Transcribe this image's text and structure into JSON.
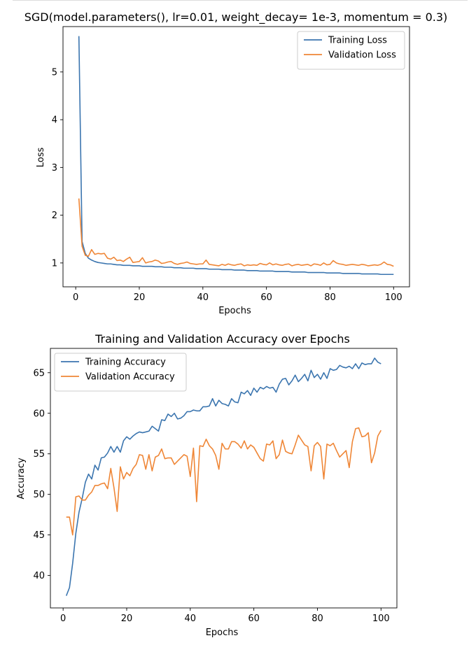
{
  "chart_data": [
    {
      "type": "line",
      "title": "SGD(model.parameters(), lr=0.01, weight_decay= 1e-3, momentum = 0.3)",
      "xlabel": "Epochs",
      "ylabel": "Loss",
      "xlim": [
        -4,
        105
      ],
      "ylim": [
        0.5,
        5.95
      ],
      "xticks": [
        0,
        20,
        40,
        60,
        80,
        100
      ],
      "yticks": [
        1,
        2,
        3,
        4,
        5
      ],
      "grid": false,
      "legend": "upper right",
      "series": [
        {
          "name": "Training Loss",
          "color": "#3b75af",
          "x": [
            1,
            2,
            3,
            4,
            5,
            6,
            7,
            8,
            9,
            10,
            11,
            12,
            13,
            14,
            15,
            16,
            17,
            18,
            19,
            20,
            21,
            22,
            23,
            24,
            25,
            26,
            27,
            28,
            29,
            30,
            31,
            32,
            33,
            34,
            35,
            36,
            37,
            38,
            39,
            40,
            41,
            42,
            43,
            44,
            45,
            46,
            47,
            48,
            49,
            50,
            51,
            52,
            53,
            54,
            55,
            56,
            57,
            58,
            59,
            60,
            61,
            62,
            63,
            64,
            65,
            66,
            67,
            68,
            69,
            70,
            71,
            72,
            73,
            74,
            75,
            76,
            77,
            78,
            79,
            80,
            81,
            82,
            83,
            84,
            85,
            86,
            87,
            88,
            89,
            90,
            91,
            92,
            93,
            94,
            95,
            96,
            97,
            98,
            99,
            100
          ],
          "y": [
            5.75,
            1.45,
            1.2,
            1.1,
            1.06,
            1.03,
            1.01,
            1.0,
            0.99,
            0.98,
            0.98,
            0.97,
            0.96,
            0.96,
            0.95,
            0.95,
            0.95,
            0.94,
            0.94,
            0.94,
            0.93,
            0.93,
            0.93,
            0.93,
            0.92,
            0.92,
            0.92,
            0.91,
            0.91,
            0.91,
            0.9,
            0.9,
            0.9,
            0.89,
            0.89,
            0.89,
            0.89,
            0.88,
            0.88,
            0.88,
            0.88,
            0.87,
            0.87,
            0.87,
            0.87,
            0.86,
            0.86,
            0.86,
            0.86,
            0.85,
            0.85,
            0.85,
            0.85,
            0.84,
            0.84,
            0.84,
            0.84,
            0.83,
            0.83,
            0.83,
            0.83,
            0.83,
            0.82,
            0.82,
            0.82,
            0.82,
            0.82,
            0.81,
            0.81,
            0.81,
            0.81,
            0.81,
            0.8,
            0.8,
            0.8,
            0.8,
            0.8,
            0.8,
            0.79,
            0.79,
            0.79,
            0.79,
            0.79,
            0.78,
            0.78,
            0.78,
            0.78,
            0.78,
            0.78,
            0.77,
            0.77,
            0.77,
            0.77,
            0.77,
            0.77,
            0.76,
            0.76,
            0.76,
            0.76,
            0.76
          ]
        },
        {
          "name": "Validation Loss",
          "color": "#ef8636",
          "x": [
            1,
            2,
            3,
            4,
            5,
            6,
            7,
            8,
            9,
            10,
            11,
            12,
            13,
            14,
            15,
            16,
            17,
            18,
            19,
            20,
            21,
            22,
            23,
            24,
            25,
            26,
            27,
            28,
            29,
            30,
            31,
            32,
            33,
            34,
            35,
            36,
            37,
            38,
            39,
            40,
            41,
            42,
            43,
            44,
            45,
            46,
            47,
            48,
            49,
            50,
            51,
            52,
            53,
            54,
            55,
            56,
            57,
            58,
            59,
            60,
            61,
            62,
            63,
            64,
            65,
            66,
            67,
            68,
            69,
            70,
            71,
            72,
            73,
            74,
            75,
            76,
            77,
            78,
            79,
            80,
            81,
            82,
            83,
            84,
            85,
            86,
            87,
            88,
            89,
            90,
            91,
            92,
            93,
            94,
            95,
            96,
            97,
            98,
            99,
            100
          ],
          "y": [
            2.35,
            1.35,
            1.16,
            1.14,
            1.28,
            1.18,
            1.2,
            1.19,
            1.2,
            1.1,
            1.08,
            1.12,
            1.05,
            1.06,
            1.03,
            1.08,
            1.12,
            1.01,
            1.02,
            1.03,
            1.11,
            1.0,
            1.02,
            1.03,
            1.06,
            1.04,
            0.99,
            1.0,
            1.02,
            1.03,
            0.99,
            0.97,
            0.99,
            1.0,
            1.02,
            0.99,
            0.98,
            0.97,
            0.98,
            0.98,
            1.06,
            0.97,
            0.96,
            0.95,
            0.94,
            0.97,
            0.95,
            0.98,
            0.96,
            0.95,
            0.97,
            0.98,
            0.94,
            0.96,
            0.95,
            0.96,
            0.95,
            0.99,
            0.97,
            0.96,
            1.0,
            0.96,
            0.98,
            0.96,
            0.95,
            0.97,
            0.98,
            0.94,
            0.96,
            0.97,
            0.95,
            0.96,
            0.97,
            0.94,
            0.98,
            0.97,
            0.95,
            1.0,
            0.96,
            0.97,
            1.05,
            1.0,
            0.98,
            0.97,
            0.95,
            0.96,
            0.97,
            0.96,
            0.95,
            0.97,
            0.96,
            0.94,
            0.95,
            0.96,
            0.95,
            0.97,
            1.02,
            0.97,
            0.96,
            0.93
          ]
        }
      ]
    },
    {
      "type": "line",
      "title": "Training and Validation Accuracy over Epochs",
      "xlabel": "Epochs",
      "ylabel": "Accuracy",
      "xlim": [
        -4,
        105
      ],
      "ylim": [
        36.0,
        68.0
      ],
      "xticks": [
        0,
        20,
        40,
        60,
        80,
        100
      ],
      "yticks": [
        40,
        45,
        50,
        55,
        60,
        65
      ],
      "grid": false,
      "legend": "upper left",
      "series": [
        {
          "name": "Training Accuracy",
          "color": "#3b75af",
          "x": [
            1,
            2,
            3,
            4,
            5,
            6,
            7,
            8,
            9,
            10,
            11,
            12,
            13,
            14,
            15,
            16,
            17,
            18,
            19,
            20,
            21,
            22,
            23,
            24,
            25,
            26,
            27,
            28,
            29,
            30,
            31,
            32,
            33,
            34,
            35,
            36,
            37,
            38,
            39,
            40,
            41,
            42,
            43,
            44,
            45,
            46,
            47,
            48,
            49,
            50,
            51,
            52,
            53,
            54,
            55,
            56,
            57,
            58,
            59,
            60,
            61,
            62,
            63,
            64,
            65,
            66,
            67,
            68,
            69,
            70,
            71,
            72,
            73,
            74,
            75,
            76,
            77,
            78,
            79,
            80,
            81,
            82,
            83,
            84,
            85,
            86,
            87,
            88,
            89,
            90,
            91,
            92,
            93,
            94,
            95,
            96,
            97,
            98,
            99,
            100
          ],
          "y": [
            37.5,
            38.5,
            41.5,
            45.2,
            47.8,
            49.5,
            51.5,
            52.5,
            51.9,
            53.6,
            53.0,
            54.5,
            54.6,
            55.1,
            55.9,
            55.2,
            55.9,
            55.2,
            56.6,
            57.1,
            56.8,
            57.2,
            57.5,
            57.7,
            57.6,
            57.7,
            57.8,
            58.4,
            58.1,
            57.8,
            59.2,
            59.1,
            59.9,
            59.6,
            60.0,
            59.3,
            59.4,
            59.7,
            60.2,
            60.2,
            60.4,
            60.3,
            60.3,
            60.8,
            60.8,
            60.9,
            61.8,
            60.9,
            61.6,
            61.2,
            61.1,
            60.9,
            61.8,
            61.4,
            61.3,
            62.6,
            62.4,
            62.8,
            62.2,
            63.1,
            62.6,
            63.2,
            63.0,
            63.3,
            63.1,
            63.2,
            62.6,
            63.6,
            64.2,
            64.3,
            63.5,
            64.0,
            64.7,
            63.9,
            64.3,
            64.8,
            64.0,
            65.3,
            64.4,
            64.8,
            64.2,
            65.0,
            64.3,
            65.5,
            65.3,
            65.4,
            65.9,
            65.7,
            65.6,
            65.8,
            65.5,
            66.1,
            65.5,
            66.2,
            66.0,
            66.1,
            66.1,
            66.8,
            66.3,
            66.1
          ]
        },
        {
          "name": "Validation Accuracy",
          "color": "#ef8636",
          "x": [
            1,
            2,
            3,
            4,
            5,
            6,
            7,
            8,
            9,
            10,
            11,
            12,
            13,
            14,
            15,
            16,
            17,
            18,
            19,
            20,
            21,
            22,
            23,
            24,
            25,
            26,
            27,
            28,
            29,
            30,
            31,
            32,
            33,
            34,
            35,
            36,
            37,
            38,
            39,
            40,
            41,
            42,
            43,
            44,
            45,
            46,
            47,
            48,
            49,
            50,
            51,
            52,
            53,
            54,
            55,
            56,
            57,
            58,
            59,
            60,
            61,
            62,
            63,
            64,
            65,
            66,
            67,
            68,
            69,
            70,
            71,
            72,
            73,
            74,
            75,
            76,
            77,
            78,
            79,
            80,
            81,
            82,
            83,
            84,
            85,
            86,
            87,
            88,
            89,
            90,
            91,
            92,
            93,
            94,
            95,
            96,
            97,
            98,
            99,
            100
          ],
          "y": [
            47.2,
            47.2,
            45.0,
            49.7,
            49.8,
            49.3,
            49.3,
            49.9,
            50.3,
            51.1,
            51.1,
            51.3,
            51.4,
            50.7,
            53.2,
            50.8,
            47.9,
            53.4,
            51.9,
            52.7,
            52.3,
            53.2,
            53.7,
            54.9,
            54.8,
            53.1,
            54.9,
            52.9,
            54.6,
            54.8,
            55.6,
            54.4,
            54.5,
            54.5,
            53.7,
            54.1,
            54.5,
            54.9,
            54.7,
            52.2,
            55.7,
            49.1,
            56.0,
            55.9,
            56.8,
            56.0,
            55.6,
            54.8,
            53.1,
            56.3,
            55.6,
            55.6,
            56.5,
            56.5,
            56.2,
            55.7,
            56.6,
            55.6,
            56.1,
            55.8,
            55.1,
            54.4,
            54.1,
            56.2,
            56.1,
            56.6,
            54.4,
            54.9,
            56.7,
            55.3,
            55.1,
            55.0,
            56.1,
            57.3,
            56.7,
            56.1,
            55.9,
            52.9,
            56.0,
            56.4,
            55.9,
            51.9,
            56.2,
            56.0,
            56.3,
            55.4,
            54.6,
            55.0,
            55.4,
            53.3,
            56.5,
            58.1,
            58.2,
            57.1,
            57.2,
            57.6,
            53.9,
            55.1,
            57.2,
            57.9
          ]
        }
      ]
    }
  ]
}
